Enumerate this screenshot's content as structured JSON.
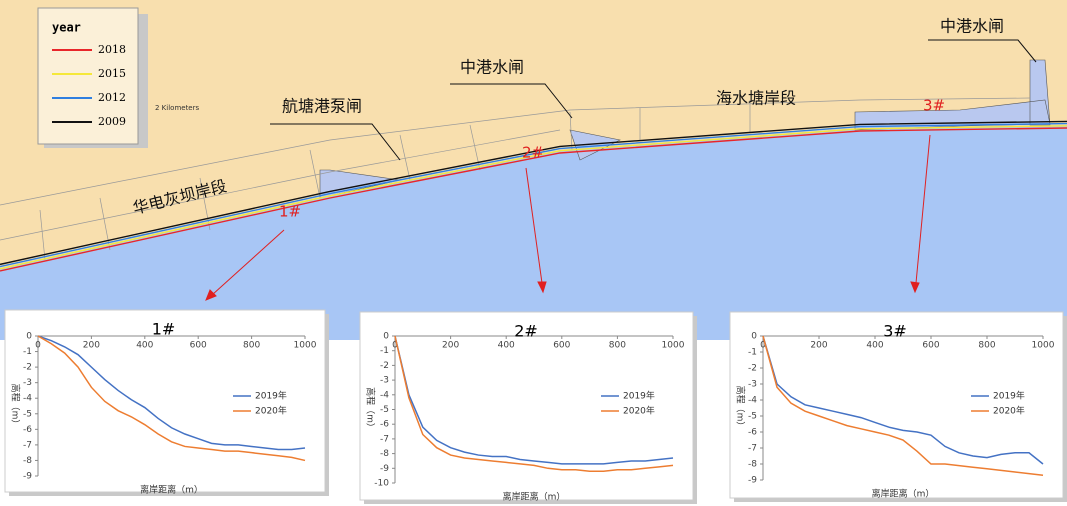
{
  "map": {
    "legend": {
      "title": "year",
      "items": [
        {
          "label": "2018",
          "color": "#e8262a"
        },
        {
          "label": "2015",
          "color": "#f5e83a"
        },
        {
          "label": "2012",
          "color": "#2f7fe0"
        },
        {
          "label": "2009",
          "color": "#111111"
        }
      ]
    },
    "scale": "2 Kilometers",
    "labels": [
      "航塘港泵闸",
      "中港水闸",
      "海水塘岸段",
      "中港水闸",
      "华电灰坝岸段"
    ],
    "markers": [
      "1#",
      "2#",
      "3#"
    ]
  },
  "chart_data": [
    {
      "type": "line",
      "title": "1#",
      "x_label": "离岸距离（m）",
      "y_label": "高程（m）",
      "x": [
        0,
        50,
        100,
        150,
        200,
        250,
        300,
        350,
        400,
        450,
        500,
        550,
        600,
        650,
        700,
        750,
        800,
        850,
        900,
        950,
        1000
      ],
      "xlim": [
        0,
        1000
      ],
      "xticks": [
        0,
        200,
        400,
        600,
        800,
        1000
      ],
      "ylim": [
        -9,
        0
      ],
      "yticks": [
        0,
        -1,
        -2,
        -3,
        -4,
        -5,
        -6,
        -7,
        -8,
        -9
      ],
      "series": [
        {
          "name": "2019年",
          "color": "#4472c4",
          "values": [
            0,
            -0.3,
            -0.7,
            -1.2,
            -2,
            -2.8,
            -3.5,
            -4.1,
            -4.6,
            -5.3,
            -5.9,
            -6.3,
            -6.6,
            -6.9,
            -7,
            -7,
            -7.1,
            -7.2,
            -7.3,
            -7.3,
            -7.2
          ]
        },
        {
          "name": "2020年",
          "color": "#ed7d31",
          "values": [
            0,
            -0.5,
            -1.1,
            -2,
            -3.3,
            -4.2,
            -4.8,
            -5.2,
            -5.7,
            -6.3,
            -6.8,
            -7.1,
            -7.2,
            -7.3,
            -7.4,
            -7.4,
            -7.5,
            -7.6,
            -7.7,
            -7.8,
            -8
          ]
        }
      ]
    },
    {
      "type": "line",
      "title": "2#",
      "x_label": "离岸距离（m）",
      "y_label": "高程（m）",
      "x": [
        0,
        50,
        100,
        150,
        200,
        250,
        300,
        350,
        400,
        450,
        500,
        550,
        600,
        650,
        700,
        750,
        800,
        850,
        900,
        950,
        1000
      ],
      "xlim": [
        0,
        1000
      ],
      "xticks": [
        0,
        200,
        400,
        600,
        800,
        1000
      ],
      "ylim": [
        -10,
        0
      ],
      "yticks": [
        0,
        -1,
        -2,
        -3,
        -4,
        -5,
        -6,
        -7,
        -8,
        -9,
        -10
      ],
      "series": [
        {
          "name": "2019年",
          "color": "#4472c4",
          "values": [
            0,
            -4,
            -6.2,
            -7.1,
            -7.6,
            -7.9,
            -8.1,
            -8.2,
            -8.2,
            -8.4,
            -8.5,
            -8.6,
            -8.7,
            -8.7,
            -8.7,
            -8.7,
            -8.6,
            -8.5,
            -8.5,
            -8.4,
            -8.3
          ]
        },
        {
          "name": "2020年",
          "color": "#ed7d31",
          "values": [
            0,
            -4.2,
            -6.7,
            -7.6,
            -8.1,
            -8.3,
            -8.4,
            -8.5,
            -8.6,
            -8.7,
            -8.8,
            -9,
            -9.1,
            -9.1,
            -9.2,
            -9.2,
            -9.1,
            -9.1,
            -9,
            -8.9,
            -8.8
          ]
        }
      ]
    },
    {
      "type": "line",
      "title": "3#",
      "x_label": "离岸距离（m）",
      "y_label": "高程（m）",
      "x": [
        0,
        50,
        100,
        150,
        200,
        250,
        300,
        350,
        400,
        450,
        500,
        550,
        600,
        650,
        700,
        750,
        800,
        850,
        900,
        950,
        1000
      ],
      "xlim": [
        0,
        1000
      ],
      "xticks": [
        0,
        200,
        400,
        600,
        800,
        1000
      ],
      "ylim": [
        -9,
        0
      ],
      "yticks": [
        0,
        -1,
        -2,
        -3,
        -4,
        -5,
        -6,
        -7,
        -8,
        -9
      ],
      "series": [
        {
          "name": "2019年",
          "color": "#4472c4",
          "values": [
            0,
            -3,
            -3.8,
            -4.3,
            -4.5,
            -4.7,
            -4.9,
            -5.1,
            -5.4,
            -5.7,
            -5.9,
            -6,
            -6.2,
            -6.9,
            -7.3,
            -7.5,
            -7.6,
            -7.4,
            -7.3,
            -7.3,
            -8
          ]
        },
        {
          "name": "2020年",
          "color": "#ed7d31",
          "values": [
            0,
            -3.2,
            -4.2,
            -4.7,
            -5,
            -5.3,
            -5.6,
            -5.8,
            -6,
            -6.2,
            -6.5,
            -7.2,
            -8,
            -8,
            -8.1,
            -8.2,
            -8.3,
            -8.4,
            -8.5,
            -8.6,
            -8.7
          ]
        }
      ]
    }
  ]
}
